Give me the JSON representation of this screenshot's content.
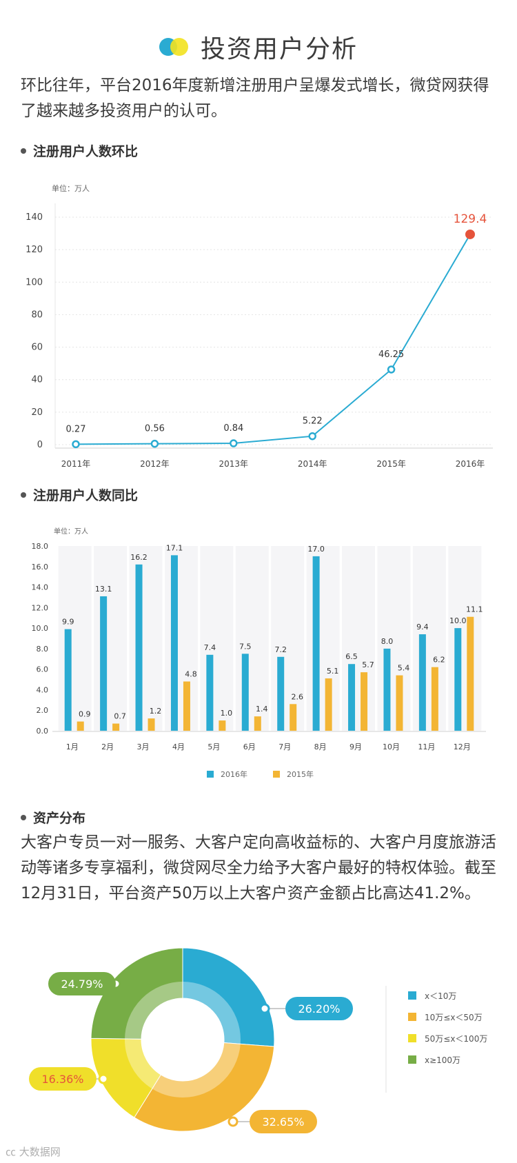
{
  "header": {
    "title": "投资用户分析",
    "intro": "环比往年，平台2016年度新增注册用户呈爆发式增长，微贷网获得了越来越多投资用户的认可。"
  },
  "sections": {
    "line_title": "注册用户人数环比",
    "bar_title": "注册用户人数同比",
    "asset_title": "资产分布",
    "asset_text": "大客户专员一对一服务、大客户定向高收益标的、大客户月度旅游活动等诸多专享福利，微贷网尽全力给予大客户最好的特权体验。截至12月31日，平台资产50万以上大客户资产金额占比高达41.2%。"
  },
  "watermark": "大数据网",
  "colors": {
    "blue": "#2aabd2",
    "orange": "#f3b534",
    "yellow": "#f0df2a",
    "green": "#77ad46",
    "red": "#e5533b"
  },
  "chart_data": [
    {
      "type": "line",
      "title": "注册用户人数环比",
      "unit": "单位：万人",
      "categories": [
        "2011年",
        "2012年",
        "2013年",
        "2014年",
        "2015年",
        "2016年"
      ],
      "values": [
        0.27,
        0.56,
        0.84,
        5.22,
        46.25,
        129.4
      ],
      "labels": [
        "0.27",
        "0.56",
        "0.84",
        "5.22",
        "46.25",
        "129.4"
      ],
      "yticks": [
        0,
        20,
        40,
        60,
        80,
        100,
        120,
        140
      ],
      "ylim": [
        0,
        140
      ]
    },
    {
      "type": "bar",
      "title": "注册用户人数同比",
      "unit": "单位：万人",
      "categories": [
        "1月",
        "2月",
        "3月",
        "4月",
        "5月",
        "6月",
        "7月",
        "8月",
        "9月",
        "10月",
        "11月",
        "12月"
      ],
      "series": [
        {
          "name": "2016年",
          "values": [
            9.9,
            13.1,
            16.2,
            17.1,
            7.4,
            7.5,
            7.2,
            17.0,
            6.5,
            8.0,
            9.4,
            10.0
          ],
          "labels": [
            "9.9",
            "13.1",
            "16.2",
            "17.1",
            "7.4",
            "7.5",
            "7.2",
            "17.0",
            "6.5",
            "8.0",
            "9.4",
            "10.0"
          ]
        },
        {
          "name": "2015年",
          "values": [
            0.9,
            0.7,
            1.2,
            4.8,
            1.0,
            1.4,
            2.6,
            5.1,
            5.7,
            5.4,
            6.2,
            11.1
          ],
          "labels": [
            "0.9",
            "0.7",
            "1.2",
            "4.8",
            "1.0",
            "1.4",
            "2.6",
            "5.1",
            "5.7",
            "5.4",
            "6.2",
            "11.1"
          ]
        }
      ],
      "yticks": [
        "0.0",
        "2.0",
        "4.0",
        "6.0",
        "8.0",
        "10.0",
        "12.0",
        "14.0",
        "16.0",
        "18.0"
      ],
      "ylim": [
        0,
        18
      ],
      "legend": [
        "2016年",
        "2015年"
      ]
    },
    {
      "type": "pie",
      "title": "资产分布",
      "slices": [
        {
          "label": "x＜10万",
          "value": 26.2,
          "text": "26.20%"
        },
        {
          "label": "10万≤x＜50万",
          "value": 32.65,
          "text": "32.65%"
        },
        {
          "label": "50万≤x＜100万",
          "value": 16.36,
          "text": "16.36%"
        },
        {
          "label": "x≥100万",
          "value": 24.79,
          "text": "24.79%"
        }
      ]
    }
  ]
}
